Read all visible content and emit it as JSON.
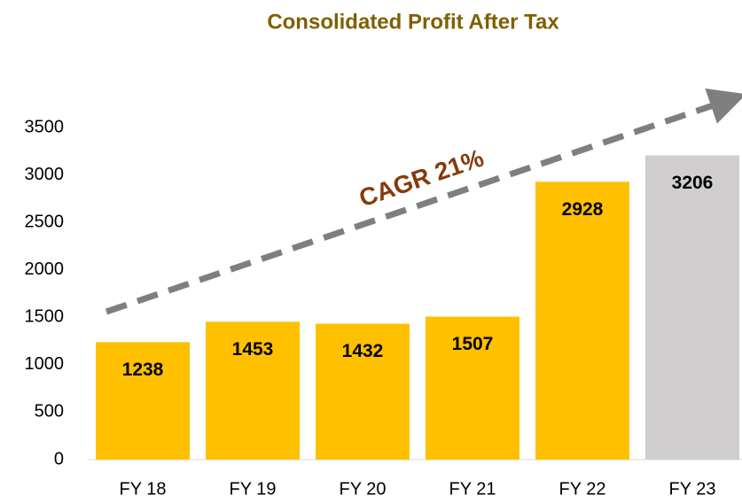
{
  "chart_data": {
    "type": "bar",
    "title": "Consolidated Profit After Tax",
    "categories": [
      "FY 18",
      "FY 19",
      "FY 20",
      "FY 21",
      "FY 22",
      "FY 23"
    ],
    "values": [
      1238,
      1453,
      1432,
      1507,
      2928,
      3206
    ],
    "colors": [
      "#ffc000",
      "#ffc000",
      "#ffc000",
      "#ffc000",
      "#ffc000",
      "#d0cece"
    ],
    "ylim": [
      0,
      3500
    ],
    "yticks": [
      0,
      500,
      1000,
      1500,
      2000,
      2500,
      3000,
      3500
    ],
    "grid": false,
    "annotations": [
      "CAGR 21%"
    ]
  }
}
